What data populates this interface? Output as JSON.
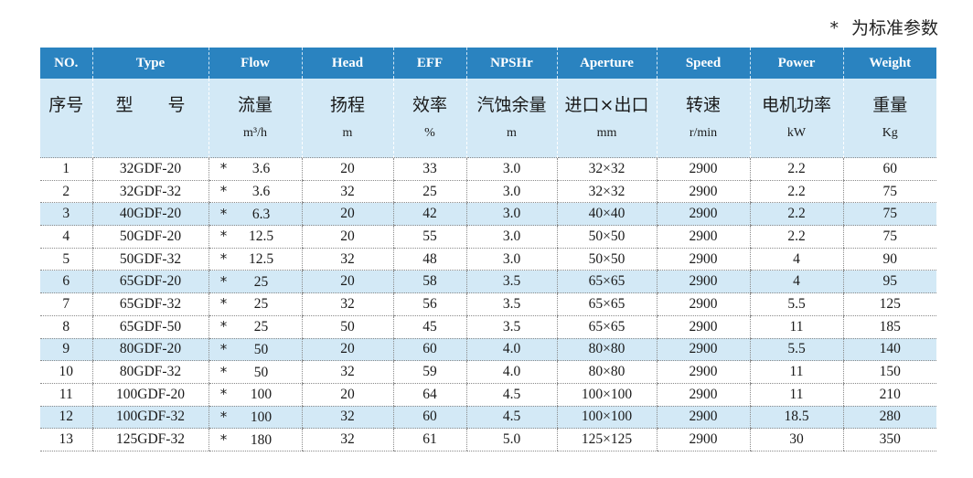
{
  "note": {
    "star": "*",
    "text": "为标准参数"
  },
  "colors": {
    "header_bg": "#2a83c0",
    "highlight_bg": "#d3e9f6"
  },
  "columns": [
    {
      "en": "NO.",
      "cn": "序号",
      "unit": ""
    },
    {
      "en": "Type",
      "cn": "型　　号",
      "unit": ""
    },
    {
      "en": "Flow",
      "cn": "流量",
      "unit": "m³/h"
    },
    {
      "en": "Head",
      "cn": "扬程",
      "unit": "m"
    },
    {
      "en": "EFF",
      "cn": "效率",
      "unit": "%"
    },
    {
      "en": "NPSHr",
      "cn": "汽蚀余量",
      "unit": "m"
    },
    {
      "en": "Aperture",
      "cn": "进口×出口",
      "unit": "mm"
    },
    {
      "en": "Speed",
      "cn": "转速",
      "unit": "r/min"
    },
    {
      "en": "Power",
      "cn": "电机功率",
      "unit": "kW"
    },
    {
      "en": "Weight",
      "cn": "重量",
      "unit": "Kg"
    }
  ],
  "rows": [
    {
      "no": "1",
      "type": "32GDF-20",
      "star": "*",
      "flow": "3.6",
      "head": "20",
      "eff": "33",
      "npshr": "3.0",
      "aperture": "32×32",
      "speed": "2900",
      "power": "2.2",
      "weight": "60",
      "highlight": false
    },
    {
      "no": "2",
      "type": "32GDF-32",
      "star": "*",
      "flow": "3.6",
      "head": "32",
      "eff": "25",
      "npshr": "3.0",
      "aperture": "32×32",
      "speed": "2900",
      "power": "2.2",
      "weight": "75",
      "highlight": false
    },
    {
      "no": "3",
      "type": "40GDF-20",
      "star": "*",
      "flow": "6.3",
      "head": "20",
      "eff": "42",
      "npshr": "3.0",
      "aperture": "40×40",
      "speed": "2900",
      "power": "2.2",
      "weight": "75",
      "highlight": true
    },
    {
      "no": "4",
      "type": "50GDF-20",
      "star": "*",
      "flow": "12.5",
      "head": "20",
      "eff": "55",
      "npshr": "3.0",
      "aperture": "50×50",
      "speed": "2900",
      "power": "2.2",
      "weight": "75",
      "highlight": false
    },
    {
      "no": "5",
      "type": "50GDF-32",
      "star": "*",
      "flow": "12.5",
      "head": "32",
      "eff": "48",
      "npshr": "3.0",
      "aperture": "50×50",
      "speed": "2900",
      "power": "4",
      "weight": "90",
      "highlight": false
    },
    {
      "no": "6",
      "type": "65GDF-20",
      "star": "*",
      "flow": "25",
      "head": "20",
      "eff": "58",
      "npshr": "3.5",
      "aperture": "65×65",
      "speed": "2900",
      "power": "4",
      "weight": "95",
      "highlight": true
    },
    {
      "no": "7",
      "type": "65GDF-32",
      "star": "*",
      "flow": "25",
      "head": "32",
      "eff": "56",
      "npshr": "3.5",
      "aperture": "65×65",
      "speed": "2900",
      "power": "5.5",
      "weight": "125",
      "highlight": false
    },
    {
      "no": "8",
      "type": "65GDF-50",
      "star": "*",
      "flow": "25",
      "head": "50",
      "eff": "45",
      "npshr": "3.5",
      "aperture": "65×65",
      "speed": "2900",
      "power": "11",
      "weight": "185",
      "highlight": false
    },
    {
      "no": "9",
      "type": "80GDF-20",
      "star": "*",
      "flow": "50",
      "head": "20",
      "eff": "60",
      "npshr": "4.0",
      "aperture": "80×80",
      "speed": "2900",
      "power": "5.5",
      "weight": "140",
      "highlight": true
    },
    {
      "no": "10",
      "type": "80GDF-32",
      "star": "*",
      "flow": "50",
      "head": "32",
      "eff": "59",
      "npshr": "4.0",
      "aperture": "80×80",
      "speed": "2900",
      "power": "11",
      "weight": "150",
      "highlight": false
    },
    {
      "no": "11",
      "type": "100GDF-20",
      "star": "*",
      "flow": "100",
      "head": "20",
      "eff": "64",
      "npshr": "4.5",
      "aperture": "100×100",
      "speed": "2900",
      "power": "11",
      "weight": "210",
      "highlight": false
    },
    {
      "no": "12",
      "type": "100GDF-32",
      "star": "*",
      "flow": "100",
      "head": "32",
      "eff": "60",
      "npshr": "4.5",
      "aperture": "100×100",
      "speed": "2900",
      "power": "18.5",
      "weight": "280",
      "highlight": true
    },
    {
      "no": "13",
      "type": "125GDF-32",
      "star": "*",
      "flow": "180",
      "head": "32",
      "eff": "61",
      "npshr": "5.0",
      "aperture": "125×125",
      "speed": "2900",
      "power": "30",
      "weight": "350",
      "highlight": false
    }
  ]
}
